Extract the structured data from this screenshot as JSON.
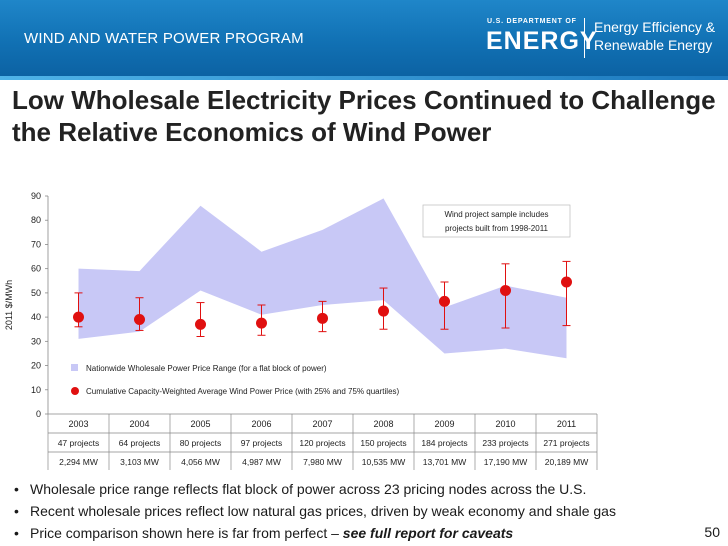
{
  "header": {
    "program": "WIND AND WATER POWER PROGRAM",
    "logo_small": "U.S. DEPARTMENT OF",
    "logo_big": "ENERGY",
    "logo_line1": "Energy Efficiency &",
    "logo_line2": "Renewable Energy"
  },
  "slide_title": "Low Wholesale Electricity Prices Continued to Challenge the Relative Economics of Wind Power",
  "chart_data": {
    "type": "area",
    "ylabel": "2011 $/MWh",
    "ylim": [
      0,
      90
    ],
    "yticks": [
      0,
      10,
      20,
      30,
      40,
      50,
      60,
      70,
      80,
      90
    ],
    "categories": [
      "2003",
      "2004",
      "2005",
      "2006",
      "2007",
      "2008",
      "2009",
      "2010",
      "2011"
    ],
    "projects": [
      "47 projects",
      "64 projects",
      "80 projects",
      "97 projects",
      "120 projects",
      "150 projects",
      "184 projects",
      "233 projects",
      "271 projects"
    ],
    "capacity": [
      "2,294 MW",
      "3,103 MW",
      "4,056 MW",
      "4,987 MW",
      "7,980 MW",
      "10,535 MW",
      "13,701 MW",
      "17,190 MW",
      "20,189 MW"
    ],
    "wholesale_range": {
      "name": "Nationwide Wholesale Power Price Range (for a flat block of power)",
      "low": [
        31,
        34,
        51,
        41,
        45,
        47,
        25,
        27,
        23
      ],
      "high": [
        60,
        59,
        86,
        67,
        76,
        89,
        44,
        53,
        48
      ],
      "color": "#c8c8f6"
    },
    "wind_price": {
      "name": "Cumulative Capacity-Weighted Average Wind Power Price (with 25% and 75% quartiles)",
      "avg": [
        40,
        39,
        37,
        37.5,
        39.5,
        42.5,
        46.5,
        51,
        54.5
      ],
      "q25": [
        36,
        34.5,
        32,
        32.5,
        34,
        35,
        35,
        35.5,
        36.5
      ],
      "q75": [
        50,
        48,
        46,
        45,
        46.5,
        52,
        54.5,
        62,
        63
      ],
      "color": "#e01010"
    },
    "annotation": [
      "Wind project sample includes",
      "projects built from 1998-2011"
    ]
  },
  "bullets": [
    {
      "text": "Wholesale price range reflects flat block of power across 23 pricing nodes across the U.S.",
      "em": ""
    },
    {
      "text": "Recent wholesale prices reflect low natural gas prices, driven by weak economy and shale gas",
      "em": ""
    },
    {
      "text": "Price comparison shown here is far from perfect – ",
      "em": "see full report for caveats"
    }
  ],
  "page_number": "50"
}
